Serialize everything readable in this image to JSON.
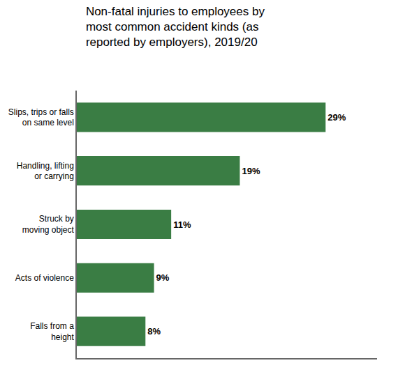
{
  "chart_data": {
    "type": "bar",
    "orientation": "horizontal",
    "title": "Non-fatal injuries to employees by\nmost common accident kinds (as\nreported by employers), 2019/20",
    "categories": [
      "Falls from a\nheight",
      "Acts of violence",
      "Struck by\nmoving object",
      "Handling, lifting\nor carrying",
      "Slips, trips or falls\non same level"
    ],
    "values": [
      8,
      9,
      11,
      19,
      29
    ],
    "value_labels": [
      "8%",
      "9%",
      "11%",
      "19%",
      "29%"
    ],
    "data_labels": true,
    "color": "#3a7d44",
    "xlim": [
      0,
      35
    ],
    "xticks": [],
    "tick_labels": "y",
    "grid": false
  }
}
